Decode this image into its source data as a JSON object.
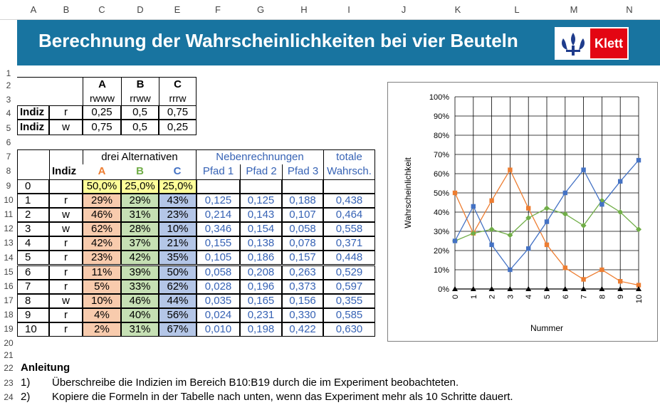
{
  "column_headers": [
    "A",
    "B",
    "C",
    "D",
    "E",
    "F",
    "G",
    "H",
    "I",
    "J",
    "K",
    "L",
    "M",
    "N"
  ],
  "row_numbers": [
    "1",
    "2",
    "3",
    "4",
    "5",
    "6",
    "7",
    "8",
    "9",
    "10",
    "11",
    "12",
    "13",
    "14",
    "15",
    "16",
    "17",
    "18",
    "19",
    "20",
    "21",
    "22",
    "23",
    "24"
  ],
  "banner": {
    "title": "Berechnung der Wahrscheinlichkeiten bei vier Beuteln",
    "logo_text": "Klett"
  },
  "bags": {
    "names": [
      "A",
      "B",
      "C"
    ],
    "contents": [
      "rwww",
      "rrww",
      "rrrw"
    ],
    "rows": [
      {
        "label": "Indiz",
        "indiz": "r",
        "values": [
          "0,25",
          "0,5",
          "0,75"
        ]
      },
      {
        "label": "Indiz",
        "indiz": "w",
        "values": [
          "0,75",
          "0,5",
          "0,25"
        ]
      }
    ]
  },
  "main_table": {
    "alternatives_header": "drei Alternativen",
    "indiz_header": "Indiz",
    "alt_names": [
      "A",
      "B",
      "C"
    ],
    "neben_header": "Nebenrechnungen",
    "pfad_headers": [
      "Pfad 1",
      "Pfad  2",
      "Pfad 3"
    ],
    "totale_header_1": "totale",
    "totale_header_2": "Wahrsch.",
    "start_row": {
      "nr": "0",
      "a": "50,0%",
      "b": "25,0%",
      "c": "25,0%"
    },
    "rows": [
      {
        "nr": "1",
        "indiz": "r",
        "a": "29%",
        "b": "29%",
        "c": "43%",
        "p1": "0,125",
        "p2": "0,125",
        "p3": "0,188",
        "t": "0,438"
      },
      {
        "nr": "2",
        "indiz": "w",
        "a": "46%",
        "b": "31%",
        "c": "23%",
        "p1": "0,214",
        "p2": "0,143",
        "p3": "0,107",
        "t": "0,464"
      },
      {
        "nr": "3",
        "indiz": "w",
        "a": "62%",
        "b": "28%",
        "c": "10%",
        "p1": "0,346",
        "p2": "0,154",
        "p3": "0,058",
        "t": "0,558"
      },
      {
        "nr": "4",
        "indiz": "r",
        "a": "42%",
        "b": "37%",
        "c": "21%",
        "p1": "0,155",
        "p2": "0,138",
        "p3": "0,078",
        "t": "0,371"
      },
      {
        "nr": "5",
        "indiz": "r",
        "a": "23%",
        "b": "42%",
        "c": "35%",
        "p1": "0,105",
        "p2": "0,186",
        "p3": "0,157",
        "t": "0,448"
      },
      {
        "nr": "6",
        "indiz": "r",
        "a": "11%",
        "b": "39%",
        "c": "50%",
        "p1": "0,058",
        "p2": "0,208",
        "p3": "0,263",
        "t": "0,529"
      },
      {
        "nr": "7",
        "indiz": "r",
        "a": "5%",
        "b": "33%",
        "c": "62%",
        "p1": "0,028",
        "p2": "0,196",
        "p3": "0,373",
        "t": "0,597"
      },
      {
        "nr": "8",
        "indiz": "w",
        "a": "10%",
        "b": "46%",
        "c": "44%",
        "p1": "0,035",
        "p2": "0,165",
        "p3": "0,156",
        "t": "0,355"
      },
      {
        "nr": "9",
        "indiz": "r",
        "a": "4%",
        "b": "40%",
        "c": "56%",
        "p1": "0,024",
        "p2": "0,231",
        "p3": "0,330",
        "t": "0,585"
      },
      {
        "nr": "10",
        "indiz": "r",
        "a": "2%",
        "b": "31%",
        "c": "67%",
        "p1": "0,010",
        "p2": "0,198",
        "p3": "0,422",
        "t": "0,630"
      }
    ]
  },
  "instructions": {
    "heading": "Anleitung",
    "items": [
      {
        "num": "1)",
        "text": "Überschreibe die Indizien im Bereich B10:B19 durch die im Experiment beobachteten."
      },
      {
        "num": "2)",
        "text": "Kopiere die Formeln in der Tabelle nach unten, wenn das Experiment mehr als 10 Schritte dauert."
      }
    ]
  },
  "colors": {
    "banner": "#1874a0",
    "logo_red": "#e30613",
    "fill_a": "#f8cbad",
    "fill_b": "#c6e0b4",
    "fill_c": "#b4c6e7",
    "fill_start": "#ffff99",
    "series_a": "#ed7d31",
    "series_b": "#70ad47",
    "series_c": "#4472c4",
    "blue_text": "#3763b5"
  },
  "chart_data": {
    "type": "line",
    "xlabel": "Nummer",
    "ylabel": "Wahrscheinlichkeit",
    "x": [
      0,
      1,
      2,
      3,
      4,
      5,
      6,
      7,
      8,
      9,
      10
    ],
    "x_tick_labels": [
      "0",
      "1",
      "2",
      "3",
      "4",
      "5",
      "6",
      "7",
      "8",
      "9",
      "10"
    ],
    "y_tick_labels": [
      "0%",
      "10%",
      "20%",
      "30%",
      "40%",
      "50%",
      "60%",
      "70%",
      "80%",
      "90%",
      "100%"
    ],
    "ylim": [
      0,
      1
    ],
    "grid": true,
    "series": [
      {
        "color": "#ed7d31",
        "marker": "square",
        "values": [
          0.5,
          0.29,
          0.46,
          0.62,
          0.42,
          0.23,
          0.11,
          0.05,
          0.1,
          0.04,
          0.02
        ]
      },
      {
        "color": "#70ad47",
        "marker": "diamond",
        "values": [
          0.25,
          0.29,
          0.31,
          0.28,
          0.37,
          0.42,
          0.39,
          0.33,
          0.46,
          0.4,
          0.31
        ]
      },
      {
        "color": "#4472c4",
        "marker": "square",
        "values": [
          0.25,
          0.43,
          0.23,
          0.1,
          0.21,
          0.35,
          0.5,
          0.62,
          0.44,
          0.56,
          0.67
        ]
      },
      {
        "color": "#000000",
        "marker": "triangle",
        "values": [
          0,
          0,
          0,
          0,
          0,
          0,
          0,
          0,
          0,
          0,
          0
        ]
      }
    ]
  }
}
